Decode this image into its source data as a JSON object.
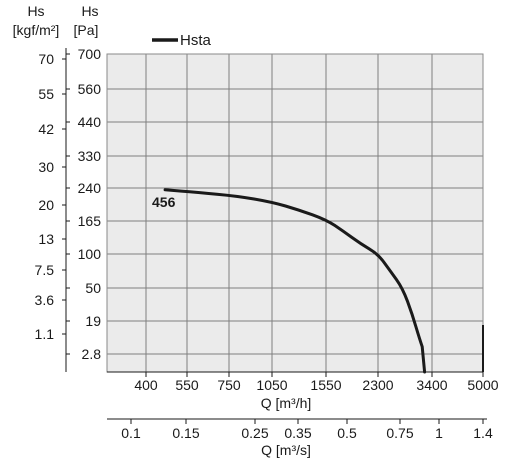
{
  "chart_data": {
    "type": "line",
    "left_axis_outer": {
      "label": "Hs",
      "unit": "[kgf/m²]",
      "ticks": [
        "70",
        "55",
        "42",
        "30",
        "20",
        "13",
        "7.5",
        "3.6",
        "1.1"
      ]
    },
    "left_axis_inner": {
      "label": "Hs",
      "unit": "[Pa]",
      "ticks": [
        "700",
        "560",
        "440",
        "330",
        "240",
        "165",
        "100",
        "50",
        "19",
        "2.8"
      ]
    },
    "x_axis_primary": {
      "label": "Q [m³/h]",
      "ticks": [
        "400",
        "550",
        "750",
        "1050",
        "1550",
        "2300",
        "3400",
        "5000"
      ]
    },
    "x_axis_secondary": {
      "label": "Q [m³/s]",
      "ticks": [
        "0.1",
        "0.15",
        "0.25",
        "0.35",
        "0.5",
        "0.75",
        "1",
        "1.4"
      ]
    },
    "legend": {
      "name": "Hsta",
      "color": "#1a1a1a",
      "placement": "top-left"
    },
    "grid": true,
    "series": [
      {
        "name": "Hsta",
        "curve_label": "456",
        "color": "#1a1a1a",
        "points": [
          {
            "q": 470,
            "hs": 236
          },
          {
            "q": 600,
            "hs": 230
          },
          {
            "q": 800,
            "hs": 222
          },
          {
            "q": 1050,
            "hs": 208
          },
          {
            "q": 1300,
            "hs": 190
          },
          {
            "q": 1550,
            "hs": 168
          },
          {
            "q": 1800,
            "hs": 145
          },
          {
            "q": 2050,
            "hs": 120
          },
          {
            "q": 2300,
            "hs": 100
          },
          {
            "q": 2550,
            "hs": 75
          },
          {
            "q": 2800,
            "hs": 50
          },
          {
            "q": 3000,
            "hs": 25
          },
          {
            "q": 3150,
            "hs": 10
          },
          {
            "q": 3250,
            "hs": 2.8
          }
        ]
      }
    ]
  }
}
